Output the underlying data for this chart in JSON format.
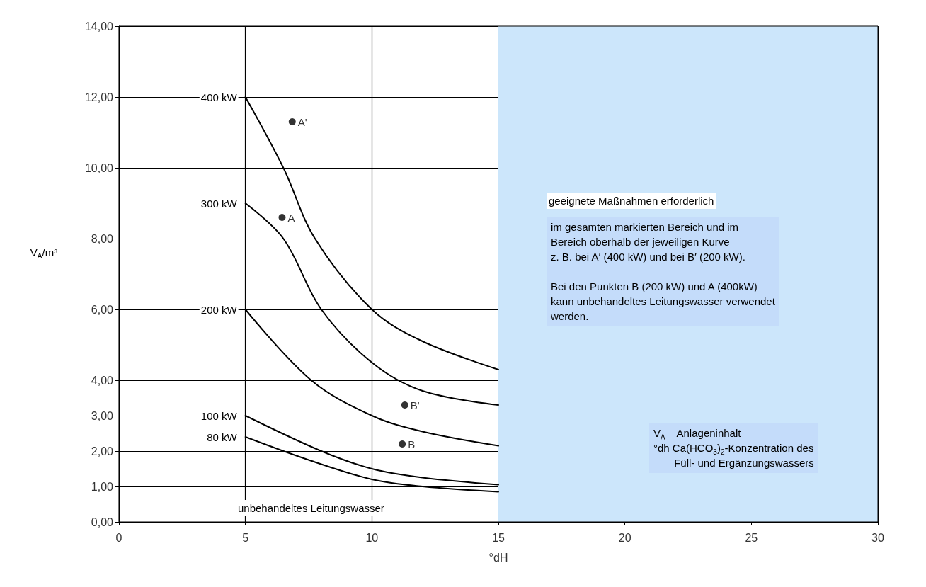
{
  "chart_data": {
    "type": "line",
    "xlabel": "°dH",
    "ylabel": "V$_{A}$/m³",
    "series": [
      {
        "name": "400 kW",
        "color": "#000000",
        "x": [
          5,
          6.5,
          7.75,
          10,
          12,
          15
        ],
        "values": [
          12,
          10,
          8,
          6,
          5.1,
          4.3
        ]
      },
      {
        "name": "300 kW",
        "color": "#000000",
        "x": [
          5,
          6.5,
          8,
          10,
          12,
          15
        ],
        "values": [
          9,
          8,
          6,
          4.5,
          3.7,
          3.3
        ]
      },
      {
        "name": "200 kW",
        "color": "#000000",
        "x": [
          5,
          7.6,
          10,
          12,
          15
        ],
        "values": [
          6,
          4,
          3,
          2.55,
          2.15
        ]
      },
      {
        "name": "100 kW",
        "color": "#000000",
        "x": [
          5,
          8,
          10,
          12,
          15
        ],
        "values": [
          3,
          2,
          1.5,
          1.25,
          1.05
        ]
      },
      {
        "name": "80 kW",
        "color": "#000000",
        "x": [
          5,
          7.5,
          10,
          12,
          15
        ],
        "values": [
          2.4,
          1.75,
          1.2,
          1.0,
          0.85
        ]
      },
      {
        "name": "A'",
        "type": "scatter",
        "color": "#000000",
        "x": [
          6.85
        ],
        "values": [
          11.3
        ]
      },
      {
        "name": "A",
        "type": "scatter",
        "color": "#000000",
        "x": [
          6.45
        ],
        "values": [
          8.6
        ]
      },
      {
        "name": "B'",
        "type": "scatter",
        "color": "#000000",
        "x": [
          11.3
        ],
        "values": [
          3.3
        ]
      },
      {
        "name": "B",
        "type": "scatter",
        "color": "#000000",
        "x": [
          11.2
        ],
        "values": [
          2.2
        ]
      }
    ],
    "xlim": [
      0,
      30
    ],
    "xticks": [
      0,
      5,
      10,
      15,
      20,
      25,
      30
    ],
    "ylim": [
      0,
      14
    ],
    "yticks": [
      {
        "value": 0,
        "label": "0,00"
      },
      {
        "value": 1,
        "label": "1,00"
      },
      {
        "value": 2,
        "label": "2,00"
      },
      {
        "value": 3,
        "label": "3,00"
      },
      {
        "value": 4,
        "label": "4,00"
      },
      {
        "value": 6,
        "label": "6,00"
      },
      {
        "value": 8,
        "label": "8,00"
      },
      {
        "value": 10,
        "label": "10,00"
      },
      {
        "value": 12,
        "label": "12,00"
      },
      {
        "value": 14,
        "label": "14,00"
      }
    ],
    "bands": [
      {
        "axis": "x",
        "from": 15,
        "to": 30,
        "color": "#cce6fb"
      }
    ],
    "annotations": [
      "geeignete Maßnahmen erforderlich",
      "im gesamten markierten Bereich und im\nBereich oberhalb der jeweiligen Kurve\nz. B. bei A′ (400 kW) und bei B′ (200 kW).\n\nBei den Punkten B (200 kW) und A (400kW)\nkann unbehandeltes Leitungswasser verwendet\nwerden.",
      "V$_{A}$    Anlageninhalt\n°dh Ca(HCO$_{3}$)$_{2}$-Konzentration des\n       Füll- und Ergänzungswassers",
      "unbehandeltes Leitungswasser"
    ],
    "grid": true,
    "line_style": "solid",
    "legend": false
  }
}
